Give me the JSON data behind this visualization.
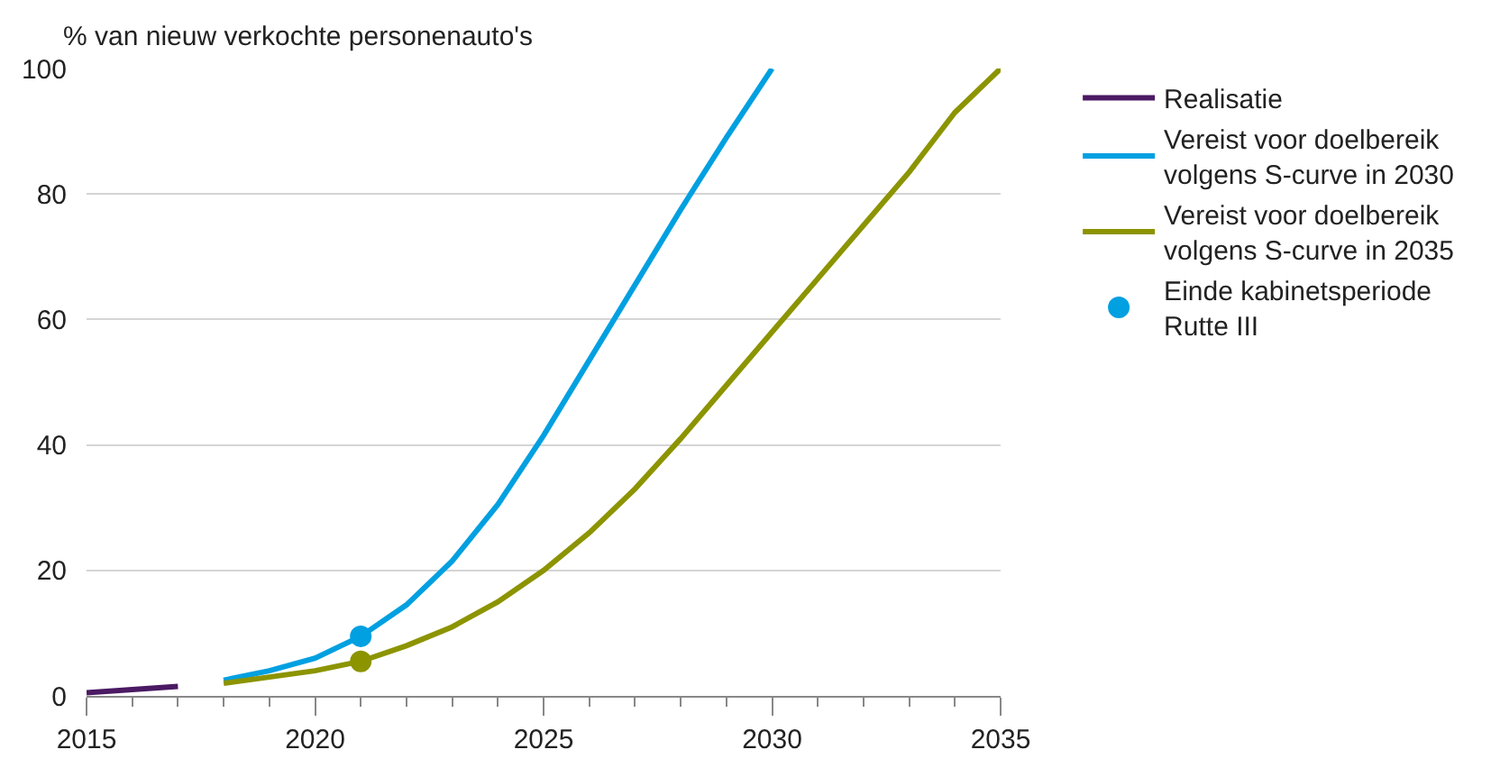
{
  "chart_data": {
    "type": "line",
    "ylabel": "% van nieuw verkochte personenauto's",
    "xlim": [
      2015,
      2035
    ],
    "xticks": [
      2015,
      2020,
      2025,
      2030,
      2035
    ],
    "ylim": [
      0,
      100
    ],
    "yticks": [
      0,
      20,
      40,
      60,
      80,
      100
    ],
    "grid": "y",
    "legend": "right",
    "marker": "none",
    "line_style": "solid",
    "series": [
      {
        "name": "Realisatie",
        "color": "#4b1a63",
        "x": [
          2015,
          2016,
          2017
        ],
        "values": [
          0.5,
          1,
          1.5
        ]
      },
      {
        "name": "Vereist voor doelbereik volgens S-curve in 2030",
        "color": "#00a0e1",
        "x": [
          2018,
          2019,
          2020,
          2021,
          2022,
          2023,
          2024,
          2025,
          2026,
          2027,
          2028,
          2029,
          2030
        ],
        "values": [
          2.5,
          4,
          6,
          9.5,
          14.5,
          21.5,
          30.5,
          41.5,
          53.5,
          65.5,
          77.5,
          89,
          100
        ]
      },
      {
        "name": "Vereist voor doelbereik volgens S-curve in 2035",
        "color": "#8c9400",
        "x": [
          2018,
          2019,
          2020,
          2021,
          2022,
          2023,
          2024,
          2025,
          2026,
          2027,
          2028,
          2029,
          2030,
          2031,
          2032,
          2033,
          2034,
          2035
        ],
        "values": [
          2,
          3,
          4,
          5.5,
          8,
          11,
          15,
          20,
          26,
          33,
          41,
          49.5,
          58,
          66.5,
          75,
          83.5,
          93,
          100
        ]
      },
      {
        "name": "Einde kabinetsperiode Rutte III",
        "type": "scatter",
        "marker": "circle",
        "colors": [
          "#00a0e1",
          "#8c9400"
        ],
        "x": [
          2021,
          2021
        ],
        "values": [
          9.5,
          5.5
        ]
      }
    ]
  }
}
